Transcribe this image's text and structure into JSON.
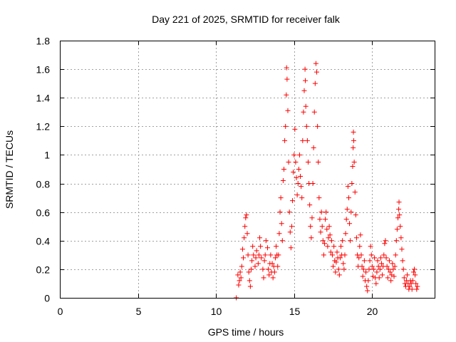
{
  "chart_data": {
    "type": "scatter",
    "title": "Day 221 of 2025, SRMTID for receiver falk",
    "xlabel": "GPS time / hours",
    "ylabel": "SRMTID / TECUs",
    "xlim": [
      0,
      24
    ],
    "ylim": [
      0,
      1.8
    ],
    "xticks": [
      0,
      5,
      10,
      15,
      20
    ],
    "xtick_labels": [
      "0",
      "5",
      "10",
      "15",
      "20"
    ],
    "yticks": [
      0,
      0.2,
      0.4,
      0.6,
      0.8,
      1,
      1.2,
      1.4,
      1.6,
      1.8
    ],
    "ytick_labels": [
      "0",
      "0.2",
      "0.4",
      "0.6",
      "0.8",
      "1",
      "1.2",
      "1.4",
      "1.6",
      "1.8"
    ],
    "grid": true,
    "marker": "plus",
    "color": "#ff0000",
    "series": [
      {
        "name": "SRMTID",
        "points": [
          [
            11.3,
            0.0
          ],
          [
            11.4,
            0.16
          ],
          [
            11.45,
            0.09
          ],
          [
            11.5,
            0.12
          ],
          [
            11.55,
            0.18
          ],
          [
            11.6,
            0.14
          ],
          [
            11.65,
            0.22
          ],
          [
            11.7,
            0.34
          ],
          [
            11.75,
            0.28
          ],
          [
            11.8,
            0.42
          ],
          [
            11.85,
            0.5
          ],
          [
            11.9,
            0.56
          ],
          [
            11.95,
            0.58
          ],
          [
            12.0,
            0.45
          ],
          [
            12.05,
            0.3
          ],
          [
            12.1,
            0.18
          ],
          [
            12.15,
            0.12
          ],
          [
            12.2,
            0.08
          ],
          [
            12.25,
            0.2
          ],
          [
            12.3,
            0.26
          ],
          [
            12.35,
            0.36
          ],
          [
            12.4,
            0.3
          ],
          [
            12.5,
            0.22
          ],
          [
            12.55,
            0.28
          ],
          [
            12.6,
            0.33
          ],
          [
            12.7,
            0.24
          ],
          [
            12.75,
            0.3
          ],
          [
            12.8,
            0.42
          ],
          [
            12.85,
            0.36
          ],
          [
            12.9,
            0.28
          ],
          [
            13.0,
            0.2
          ],
          [
            13.05,
            0.14
          ],
          [
            13.1,
            0.26
          ],
          [
            13.15,
            0.3
          ],
          [
            13.2,
            0.4
          ],
          [
            13.3,
            0.35
          ],
          [
            13.35,
            0.2
          ],
          [
            13.4,
            0.16
          ],
          [
            13.45,
            0.24
          ],
          [
            13.5,
            0.3
          ],
          [
            13.55,
            0.18
          ],
          [
            13.6,
            0.24
          ],
          [
            13.65,
            0.14
          ],
          [
            13.7,
            0.22
          ],
          [
            13.75,
            0.18
          ],
          [
            13.8,
            0.28
          ],
          [
            13.85,
            0.36
          ],
          [
            13.9,
            0.3
          ],
          [
            13.95,
            0.22
          ],
          [
            14.0,
            0.3
          ],
          [
            14.05,
            0.45
          ],
          [
            14.1,
            0.6
          ],
          [
            14.15,
            0.7
          ],
          [
            14.2,
            0.52
          ],
          [
            14.25,
            0.4
          ],
          [
            14.3,
            0.82
          ],
          [
            14.35,
            0.9
          ],
          [
            14.4,
            1.1
          ],
          [
            14.45,
            1.2
          ],
          [
            14.5,
            1.42
          ],
          [
            14.52,
            1.61
          ],
          [
            14.55,
            1.53
          ],
          [
            14.6,
            1.31
          ],
          [
            14.65,
            0.95
          ],
          [
            14.7,
            0.6
          ],
          [
            14.75,
            0.46
          ],
          [
            14.8,
            0.35
          ],
          [
            14.85,
            0.5
          ],
          [
            14.9,
            0.68
          ],
          [
            14.95,
            0.88
          ],
          [
            15.0,
            1.0
          ],
          [
            15.05,
            1.18
          ],
          [
            15.1,
            0.95
          ],
          [
            15.15,
            0.84
          ],
          [
            15.2,
            0.72
          ],
          [
            15.25,
            0.8
          ],
          [
            15.3,
            0.9
          ],
          [
            15.35,
            1.0
          ],
          [
            15.4,
            0.85
          ],
          [
            15.45,
            0.78
          ],
          [
            15.5,
            0.7
          ],
          [
            15.55,
            1.1
          ],
          [
            15.6,
            1.3
          ],
          [
            15.65,
            1.45
          ],
          [
            15.7,
            1.6
          ],
          [
            15.72,
            1.52
          ],
          [
            15.75,
            1.34
          ],
          [
            15.8,
            1.2
          ],
          [
            15.85,
            1.1
          ],
          [
            15.9,
            0.95
          ],
          [
            15.95,
            0.8
          ],
          [
            16.0,
            0.65
          ],
          [
            16.05,
            0.5
          ],
          [
            16.1,
            0.42
          ],
          [
            16.15,
            0.56
          ],
          [
            16.2,
            0.8
          ],
          [
            16.25,
            1.05
          ],
          [
            16.3,
            1.3
          ],
          [
            16.35,
            1.5
          ],
          [
            16.4,
            1.64
          ],
          [
            16.45,
            1.58
          ],
          [
            16.5,
            1.2
          ],
          [
            16.55,
            0.95
          ],
          [
            16.6,
            0.7
          ],
          [
            16.65,
            0.55
          ],
          [
            16.7,
            0.46
          ],
          [
            16.75,
            0.6
          ],
          [
            16.8,
            0.5
          ],
          [
            16.85,
            0.4
          ],
          [
            16.9,
            0.3
          ],
          [
            16.95,
            0.38
          ],
          [
            17.0,
            0.55
          ],
          [
            17.05,
            0.6
          ],
          [
            17.1,
            0.48
          ],
          [
            17.15,
            0.36
          ],
          [
            17.2,
            0.42
          ],
          [
            17.25,
            0.5
          ],
          [
            17.3,
            0.44
          ],
          [
            17.35,
            0.32
          ],
          [
            17.4,
            0.4
          ],
          [
            17.45,
            0.3
          ],
          [
            17.5,
            0.22
          ],
          [
            17.55,
            0.36
          ],
          [
            17.6,
            0.26
          ],
          [
            17.65,
            0.18
          ],
          [
            17.7,
            0.25
          ],
          [
            17.75,
            0.32
          ],
          [
            17.8,
            0.28
          ],
          [
            17.85,
            0.2
          ],
          [
            17.9,
            0.16
          ],
          [
            17.95,
            0.28
          ],
          [
            18.0,
            0.36
          ],
          [
            18.05,
            0.3
          ],
          [
            18.1,
            0.4
          ],
          [
            18.15,
            0.24
          ],
          [
            18.2,
            0.2
          ],
          [
            18.25,
            0.3
          ],
          [
            18.3,
            0.45
          ],
          [
            18.35,
            0.55
          ],
          [
            18.4,
            0.62
          ],
          [
            18.45,
            0.78
          ],
          [
            18.5,
            0.7
          ],
          [
            18.55,
            0.52
          ],
          [
            18.6,
            0.4
          ],
          [
            18.65,
            0.6
          ],
          [
            18.7,
            0.8
          ],
          [
            18.75,
            0.92
          ],
          [
            18.78,
            1.05
          ],
          [
            18.8,
            1.16
          ],
          [
            18.82,
            1.1
          ],
          [
            18.85,
            0.95
          ],
          [
            18.9,
            0.74
          ],
          [
            18.95,
            0.58
          ],
          [
            19.0,
            0.42
          ],
          [
            19.05,
            0.3
          ],
          [
            19.1,
            0.22
          ],
          [
            19.15,
            0.28
          ],
          [
            19.2,
            0.36
          ],
          [
            19.25,
            0.44
          ],
          [
            19.3,
            0.3
          ],
          [
            19.35,
            0.22
          ],
          [
            19.4,
            0.15
          ],
          [
            19.45,
            0.2
          ],
          [
            19.5,
            0.26
          ],
          [
            19.55,
            0.12
          ],
          [
            19.6,
            0.18
          ],
          [
            19.65,
            0.08
          ],
          [
            19.7,
            0.05
          ],
          [
            19.75,
            0.12
          ],
          [
            19.8,
            0.2
          ],
          [
            19.85,
            0.26
          ],
          [
            19.9,
            0.36
          ],
          [
            19.95,
            0.3
          ],
          [
            20.0,
            0.22
          ],
          [
            20.05,
            0.15
          ],
          [
            20.1,
            0.2
          ],
          [
            20.15,
            0.28
          ],
          [
            20.2,
            0.14
          ],
          [
            20.25,
            0.1
          ],
          [
            20.3,
            0.18
          ],
          [
            20.35,
            0.26
          ],
          [
            20.4,
            0.22
          ],
          [
            20.45,
            0.14
          ],
          [
            20.5,
            0.2
          ],
          [
            20.55,
            0.28
          ],
          [
            20.6,
            0.24
          ],
          [
            20.65,
            0.16
          ],
          [
            20.7,
            0.22
          ],
          [
            20.75,
            0.3
          ],
          [
            20.8,
            0.38
          ],
          [
            20.85,
            0.4
          ],
          [
            20.9,
            0.28
          ],
          [
            20.95,
            0.22
          ],
          [
            21.0,
            0.14
          ],
          [
            21.05,
            0.2
          ],
          [
            21.1,
            0.26
          ],
          [
            21.15,
            0.18
          ],
          [
            21.2,
            0.12
          ],
          [
            21.25,
            0.16
          ],
          [
            21.3,
            0.24
          ],
          [
            21.35,
            0.2
          ],
          [
            21.4,
            0.15
          ],
          [
            21.45,
            0.22
          ],
          [
            21.5,
            0.3
          ],
          [
            21.55,
            0.4
          ],
          [
            21.6,
            0.48
          ],
          [
            21.65,
            0.56
          ],
          [
            21.7,
            0.62
          ],
          [
            21.72,
            0.67
          ],
          [
            21.75,
            0.58
          ],
          [
            21.8,
            0.5
          ],
          [
            21.85,
            0.42
          ],
          [
            21.9,
            0.34
          ],
          [
            21.95,
            0.26
          ],
          [
            22.0,
            0.2
          ],
          [
            22.05,
            0.14
          ],
          [
            22.1,
            0.1
          ],
          [
            22.15,
            0.08
          ],
          [
            22.2,
            0.12
          ],
          [
            22.25,
            0.16
          ],
          [
            22.3,
            0.1
          ],
          [
            22.35,
            0.06
          ],
          [
            22.4,
            0.08
          ],
          [
            22.45,
            0.12
          ],
          [
            22.5,
            0.1
          ],
          [
            22.55,
            0.06
          ],
          [
            22.6,
            0.12
          ],
          [
            22.65,
            0.18
          ],
          [
            22.7,
            0.2
          ],
          [
            22.75,
            0.16
          ],
          [
            22.8,
            0.1
          ],
          [
            22.85,
            0.06
          ],
          [
            22.9,
            0.08
          ]
        ]
      }
    ]
  }
}
